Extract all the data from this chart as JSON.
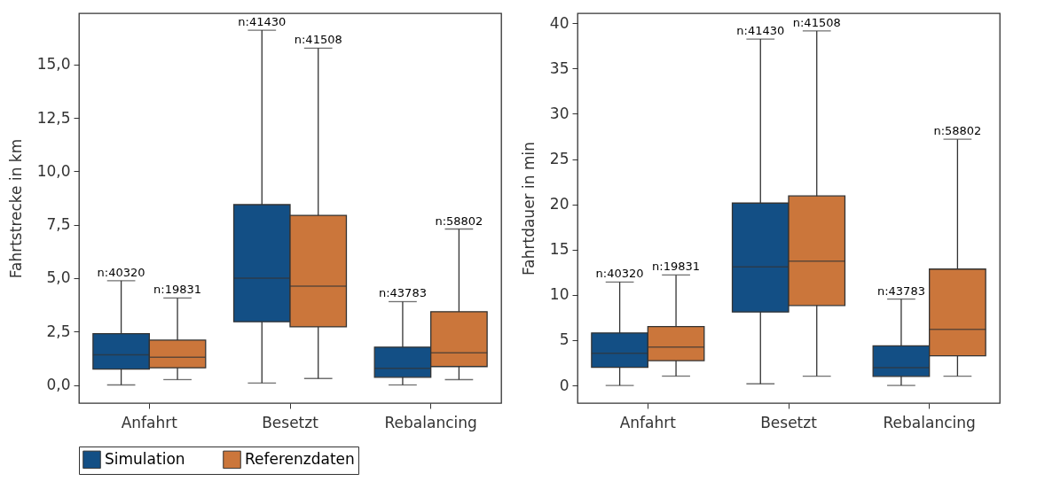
{
  "chart_data": [
    {
      "type": "box",
      "categories": [
        "Anfahrt",
        "Besetzt",
        "Rebalancing"
      ],
      "ylabel": "Fahrtstrecke in km",
      "ylim": [
        -0.85,
        17.4
      ],
      "yticks": [
        {
          "value": 0,
          "label": "0,0"
        },
        {
          "value": 2.5,
          "label": "2,5"
        },
        {
          "value": 5,
          "label": "5,0"
        },
        {
          "value": 7.5,
          "label": "7,5"
        },
        {
          "value": 10,
          "label": "10,0"
        },
        {
          "value": 12.5,
          "label": "12,5"
        },
        {
          "value": 15,
          "label": "15,0"
        }
      ],
      "grid": false,
      "legend": "bottom",
      "series": [
        {
          "name": "Simulation",
          "color": "#134f85",
          "boxes": [
            {
              "low": 0,
              "q1": 0.74,
              "median": 1.41,
              "q3": 2.4,
              "high": 4.88
            },
            {
              "low": 0.09,
              "q1": 2.96,
              "median": 5.0,
              "q3": 8.44,
              "high": 16.61
            },
            {
              "low": 0,
              "q1": 0.36,
              "median": 0.78,
              "q3": 1.77,
              "high": 3.9
            }
          ]
        },
        {
          "name": "Referenzdaten",
          "color": "#cb763b",
          "boxes": [
            {
              "low": 0.25,
              "q1": 0.8,
              "median": 1.3,
              "q3": 2.1,
              "high": 4.07
            },
            {
              "low": 0.3,
              "q1": 2.72,
              "median": 4.63,
              "q3": 7.94,
              "high": 15.77
            },
            {
              "low": 0.25,
              "q1": 0.86,
              "median": 1.5,
              "q3": 3.43,
              "high": 7.3
            }
          ]
        }
      ],
      "annotations": [
        "n:40320",
        "n:19831",
        "n:41430",
        "n:41508",
        "n:43783",
        "n:58802"
      ]
    },
    {
      "type": "box",
      "categories": [
        "Anfahrt",
        "Besetzt",
        "Rebalancing"
      ],
      "ylabel": "Fahrtdauer in min",
      "ylim": [
        -1.95,
        41.1
      ],
      "yticks": [
        0,
        5,
        10,
        15,
        20,
        25,
        30,
        35,
        40
      ],
      "grid": false,
      "legend": "bottom",
      "series": [
        {
          "name": "Simulation",
          "color": "#134f85",
          "boxes": [
            {
              "low": 0,
              "q1": 2.0,
              "median": 3.56,
              "q3": 5.8,
              "high": 11.42
            },
            {
              "low": 0.18,
              "q1": 8.11,
              "median": 13.1,
              "q3": 20.14,
              "high": 38.26
            },
            {
              "low": 0,
              "q1": 1.0,
              "median": 1.96,
              "q3": 4.38,
              "high": 9.54
            }
          ]
        },
        {
          "name": "Referenzdaten",
          "color": "#cb763b",
          "boxes": [
            {
              "low": 1.03,
              "q1": 2.74,
              "median": 4.23,
              "q3": 6.51,
              "high": 12.2
            },
            {
              "low": 1.03,
              "q1": 8.83,
              "median": 13.74,
              "q3": 20.93,
              "high": 39.15
            },
            {
              "low": 1.03,
              "q1": 3.27,
              "median": 6.19,
              "q3": 12.85,
              "high": 27.19
            }
          ]
        }
      ],
      "annotations": [
        "n:40320",
        "n:19831",
        "n:41430",
        "n:41508",
        "n:43783",
        "n:58802"
      ]
    }
  ]
}
